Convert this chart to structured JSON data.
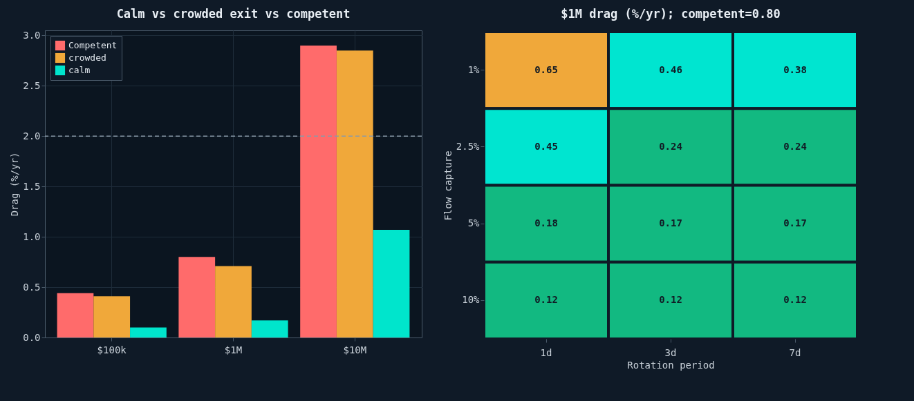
{
  "chart_data": [
    {
      "type": "bar",
      "title": "Calm vs crowded exit vs competent",
      "ylabel": "Drag (%/yr)",
      "categories": [
        "$100k",
        "$1M",
        "$10M"
      ],
      "series": [
        {
          "name": "Competent",
          "color": "#ff6b6b",
          "values": [
            0.44,
            0.8,
            2.9
          ]
        },
        {
          "name": "crowded",
          "color": "#f0a83a",
          "values": [
            0.41,
            0.71,
            2.85
          ]
        },
        {
          "name": "calm",
          "color": "#00e5cc",
          "values": [
            0.1,
            0.17,
            1.07
          ]
        }
      ],
      "ylim": [
        0,
        3.05
      ],
      "yticks": [
        {
          "value": 0,
          "label": "0.0"
        },
        0.5,
        {
          "value": 1,
          "label": "1.0"
        },
        1.5,
        {
          "value": 2,
          "label": "2.0"
        },
        2.5,
        {
          "value": 3,
          "label": "3.0"
        }
      ],
      "ref_lines": [
        {
          "axis": "y",
          "value": 2,
          "color": "#8a9aa8",
          "line_style": "dashed"
        }
      ],
      "grid": true,
      "legend": "top left"
    },
    {
      "type": "heatmap",
      "title": "$1M drag (%/yr); competent=0.80",
      "xlabel": "Rotation period",
      "ylabel": "Flow capture",
      "categories": [
        "1d",
        "3d",
        "7d"
      ],
      "y_categories": [
        "1%",
        "2.5%",
        "5%",
        "10%"
      ],
      "cells": [
        [
          0.65,
          0.46,
          0.38
        ],
        [
          0.45,
          0.24,
          0.24
        ],
        [
          0.18,
          0.17,
          0.17
        ],
        [
          0.12,
          0.12,
          0.12
        ]
      ],
      "colors": [
        [
          "#f0a83a",
          "#00e5d0",
          "#00e5d0"
        ],
        [
          "#00e5d0",
          "#12b981",
          "#12b981"
        ],
        [
          "#12b981",
          "#12b981",
          "#12b981"
        ],
        [
          "#12b981",
          "#12b981",
          "#12b981"
        ]
      ],
      "data_labels": true
    }
  ]
}
